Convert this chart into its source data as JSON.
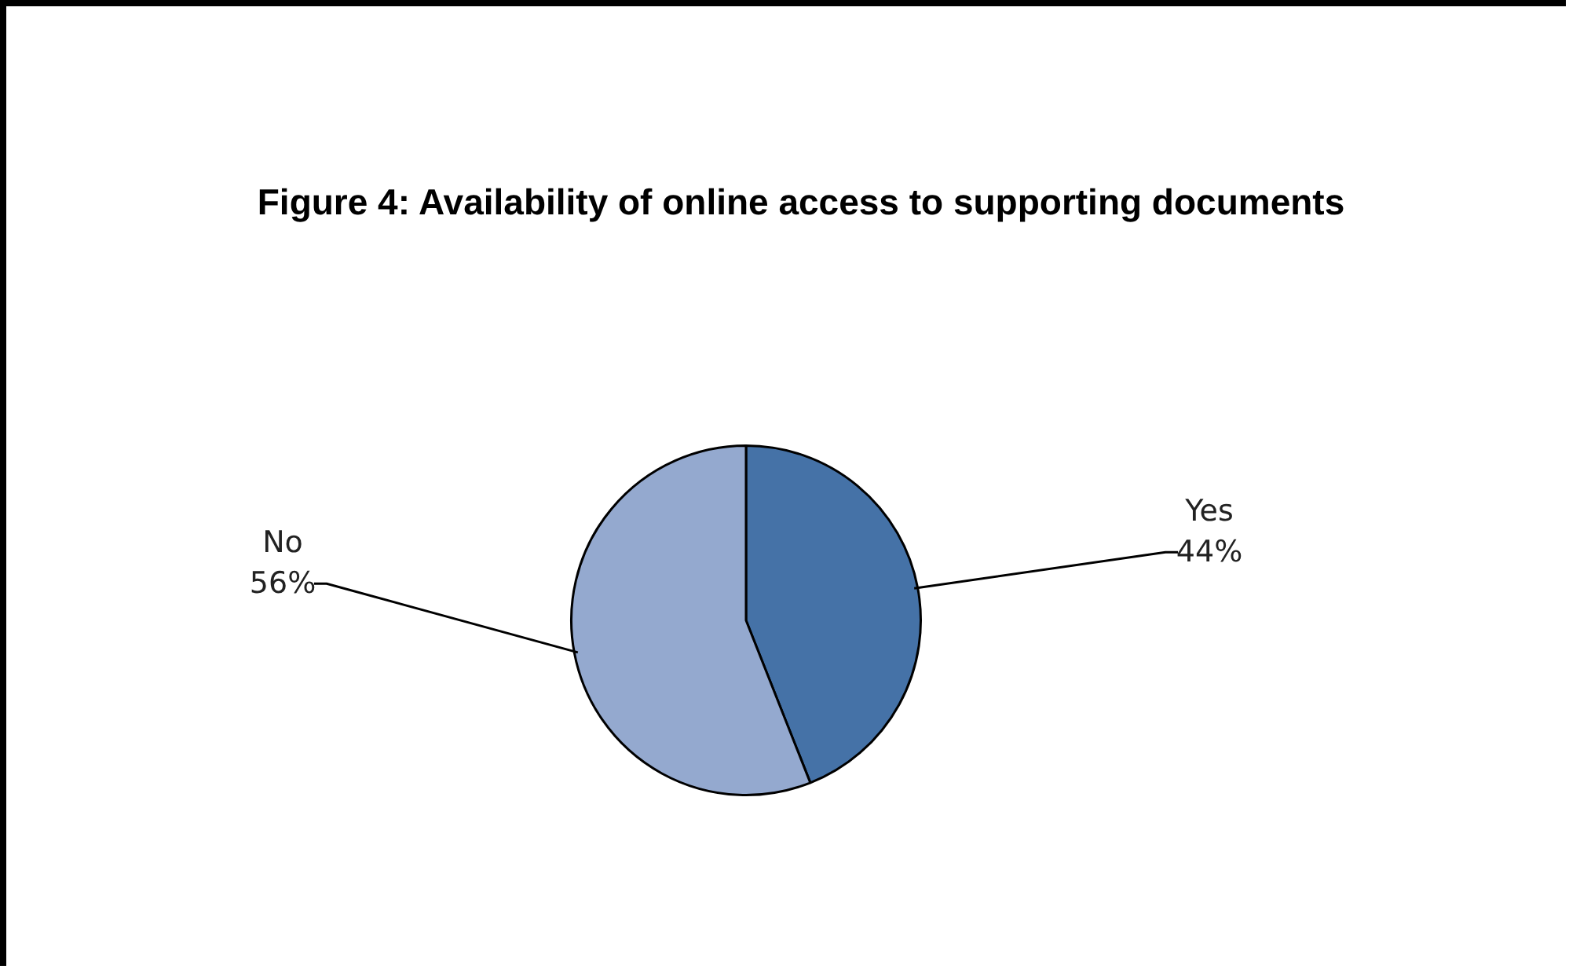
{
  "chart_data": {
    "type": "pie",
    "title": "Figure 4: Availability of online access to supporting documents",
    "categories": [
      "Yes",
      "No"
    ],
    "values": [
      44,
      56
    ],
    "colors": [
      "#4572a7",
      "#94a9cf"
    ],
    "value_labels": [
      "44%",
      "56%"
    ],
    "legend": false
  }
}
